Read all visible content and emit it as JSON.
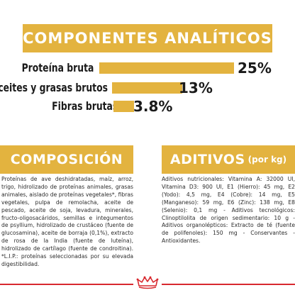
{
  "analysis": {
    "title": "COMPONENTES ANALÍTICOS",
    "rows": [
      {
        "label": "Proteína bruta",
        "value": "25%",
        "percent": 25
      },
      {
        "label": "Aceites y grasas brutos",
        "value": "13%",
        "percent": 13
      },
      {
        "label": "Fibras brutas",
        "value": "3.8%",
        "percent": 3.8
      }
    ]
  },
  "composition": {
    "title": "COMPOSICIÓN",
    "text": "Proteínas de ave deshidratadas, maíz, arroz, trigo, hidrolizado de proteínas animales, grasas animales, aislado de proteínas vegetales*, fibras vegetales, pulpa de remolacha, aceite de pescado, aceite de soja, levadura, minerales, fructo-oligosacáridos, semillas e integumentos de psyllium, hidrolizado de crustáceo (fuente de glucosamina), aceite de borraja (0,1%), extracto de rosa de la India (fuente de luteína), hidrolizado de cartílago (fuente de condroitina). *L.I.P.: proteínas seleccionadas por su elevada digestibilidad."
  },
  "additives": {
    "title": "ADITIVOS",
    "subtitle": "(por kg)",
    "text": "Aditivos nutricionales: Vitamina A: 32000 UI, Vitamina D3: 900 UI, E1 (Hierro): 45 mg, E2 (Yodo): 4,5 mg, E4 (Cobre): 14 mg, E5 (Manganeso): 59 mg, E6 (Zinc): 138 mg, E8 (Selenio): 0,1 mg - Aditivos tecnológicos: Clinoptilolita de origen sedimentario: 10 g - Aditivos organolépticos: Extracto de té (fuente de polifenoles): 150 mg - Conservantes - Antioxidantes."
  },
  "brand": {
    "logo": "crown-icon",
    "accent_color": "#e3b33f",
    "red_color": "#d8292f"
  }
}
